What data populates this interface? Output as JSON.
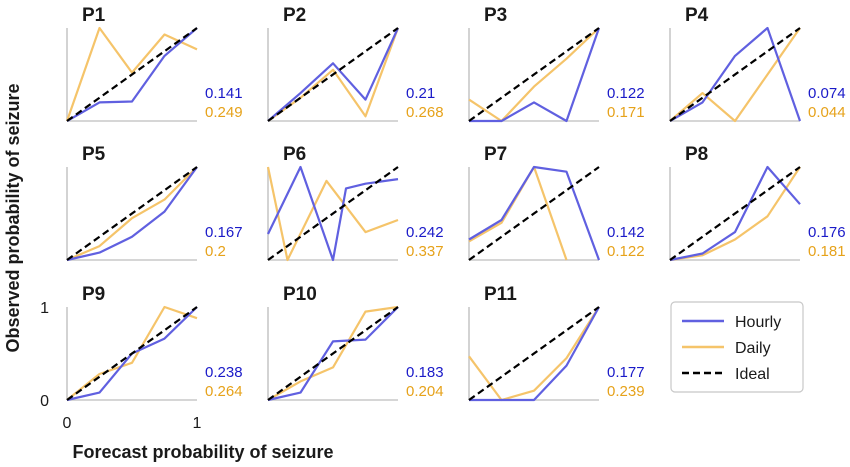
{
  "chart_data": {
    "type": "line",
    "xlabel": "Forecast probability of seizure",
    "ylabel": "Observed probability of seizure",
    "xlim": [
      0,
      1
    ],
    "ylim": [
      0,
      1
    ],
    "x_ticks": [
      "0",
      "1"
    ],
    "y_ticks": [
      "0",
      "1"
    ],
    "colors": {
      "hourly": "#6060e0",
      "daily": "#f5c46a",
      "ideal": "#000000",
      "hourly_score": "#1a1ac8",
      "daily_score": "#e6a21a"
    },
    "legend": {
      "placement": "bottom-right",
      "entries": [
        "Hourly",
        "Daily",
        "Ideal"
      ]
    },
    "grid": false,
    "panels": [
      {
        "title": "P1",
        "hourly_score": "0.141",
        "daily_score": "0.249",
        "hourly": [
          [
            0,
            0
          ],
          [
            0.25,
            0.2
          ],
          [
            0.5,
            0.21
          ],
          [
            0.75,
            0.7
          ],
          [
            1,
            1
          ]
        ],
        "daily": [
          [
            0,
            0
          ],
          [
            0.25,
            1
          ],
          [
            0.5,
            0.52
          ],
          [
            0.75,
            0.93
          ],
          [
            1,
            0.77
          ]
        ]
      },
      {
        "title": "P2",
        "hourly_score": "0.21",
        "daily_score": "0.268",
        "hourly": [
          [
            0,
            0
          ],
          [
            0.25,
            0.3
          ],
          [
            0.5,
            0.62
          ],
          [
            0.75,
            0.23
          ],
          [
            1,
            1
          ]
        ],
        "daily": [
          [
            0,
            0
          ],
          [
            0.25,
            0.25
          ],
          [
            0.5,
            0.55
          ],
          [
            0.75,
            0.05
          ],
          [
            1,
            1
          ]
        ]
      },
      {
        "title": "P3",
        "hourly_score": "0.122",
        "daily_score": "0.171",
        "hourly": [
          [
            0,
            0
          ],
          [
            0.25,
            0.0
          ],
          [
            0.5,
            0.2
          ],
          [
            0.75,
            0.0
          ],
          [
            1,
            1
          ]
        ],
        "daily": [
          [
            0,
            0.23
          ],
          [
            0.25,
            0.0
          ],
          [
            0.5,
            0.37
          ],
          [
            0.75,
            0.67
          ],
          [
            1,
            1
          ]
        ]
      },
      {
        "title": "P4",
        "hourly_score": "0.074",
        "daily_score": "0.044",
        "hourly": [
          [
            0,
            0
          ],
          [
            0.25,
            0.2
          ],
          [
            0.5,
            0.7
          ],
          [
            0.75,
            1
          ],
          [
            1,
            0
          ]
        ],
        "daily": [
          [
            0,
            0
          ],
          [
            0.25,
            0.3
          ],
          [
            0.5,
            0.0
          ],
          [
            0.75,
            0.5
          ],
          [
            1,
            1
          ]
        ]
      },
      {
        "title": "P5",
        "hourly_score": "0.167",
        "daily_score": "0.2",
        "hourly": [
          [
            0,
            0
          ],
          [
            0.25,
            0.08
          ],
          [
            0.5,
            0.25
          ],
          [
            0.75,
            0.52
          ],
          [
            1,
            1
          ]
        ],
        "daily": [
          [
            0,
            0
          ],
          [
            0.25,
            0.15
          ],
          [
            0.5,
            0.45
          ],
          [
            0.75,
            0.65
          ],
          [
            1,
            1
          ]
        ]
      },
      {
        "title": "P6",
        "hourly_score": "0.242",
        "daily_score": "0.337",
        "hourly": [
          [
            0,
            0.28
          ],
          [
            0.25,
            1
          ],
          [
            0.5,
            0.0
          ],
          [
            0.6,
            0.77
          ],
          [
            0.75,
            0.82
          ],
          [
            1,
            0.87
          ]
        ],
        "daily": [
          [
            0,
            1
          ],
          [
            0.15,
            0.0
          ],
          [
            0.45,
            0.85
          ],
          [
            0.75,
            0.3
          ],
          [
            1,
            0.43
          ]
        ]
      },
      {
        "title": "P7",
        "hourly_score": "0.142",
        "daily_score": "0.122",
        "hourly": [
          [
            0,
            0.22
          ],
          [
            0.25,
            0.43
          ],
          [
            0.5,
            1
          ],
          [
            0.75,
            0.95
          ],
          [
            1,
            0
          ]
        ],
        "daily": [
          [
            0,
            0.2
          ],
          [
            0.25,
            0.4
          ],
          [
            0.5,
            1
          ],
          [
            0.75,
            0.0
          ]
        ]
      },
      {
        "title": "P8",
        "hourly_score": "0.176",
        "daily_score": "0.181",
        "hourly": [
          [
            0,
            0
          ],
          [
            0.25,
            0.07
          ],
          [
            0.5,
            0.3
          ],
          [
            0.75,
            1
          ],
          [
            1,
            0.6
          ]
        ],
        "daily": [
          [
            0,
            0
          ],
          [
            0.25,
            0.05
          ],
          [
            0.5,
            0.22
          ],
          [
            0.75,
            0.47
          ],
          [
            1,
            1
          ]
        ]
      },
      {
        "title": "P9",
        "hourly_score": "0.238",
        "daily_score": "0.264",
        "hourly": [
          [
            0,
            0
          ],
          [
            0.25,
            0.08
          ],
          [
            0.5,
            0.5
          ],
          [
            0.75,
            0.66
          ],
          [
            1,
            1
          ]
        ],
        "daily": [
          [
            0,
            0
          ],
          [
            0.25,
            0.28
          ],
          [
            0.5,
            0.4
          ],
          [
            0.75,
            1
          ],
          [
            1,
            0.88
          ]
        ]
      },
      {
        "title": "P10",
        "hourly_score": "0.183",
        "daily_score": "0.204",
        "hourly": [
          [
            0,
            0
          ],
          [
            0.25,
            0.08
          ],
          [
            0.5,
            0.63
          ],
          [
            0.75,
            0.65
          ],
          [
            1,
            1
          ]
        ],
        "daily": [
          [
            0,
            0
          ],
          [
            0.25,
            0.2
          ],
          [
            0.5,
            0.35
          ],
          [
            0.75,
            0.95
          ],
          [
            1,
            1
          ]
        ]
      },
      {
        "title": "P11",
        "hourly_score": "0.177",
        "daily_score": "0.239",
        "hourly": [
          [
            0,
            0
          ],
          [
            0.25,
            0.0
          ],
          [
            0.5,
            0.0
          ],
          [
            0.75,
            0.37
          ],
          [
            1,
            1
          ]
        ],
        "daily": [
          [
            0,
            0.47
          ],
          [
            0.25,
            0.0
          ],
          [
            0.5,
            0.1
          ],
          [
            0.75,
            0.45
          ],
          [
            1,
            1
          ]
        ]
      }
    ]
  }
}
